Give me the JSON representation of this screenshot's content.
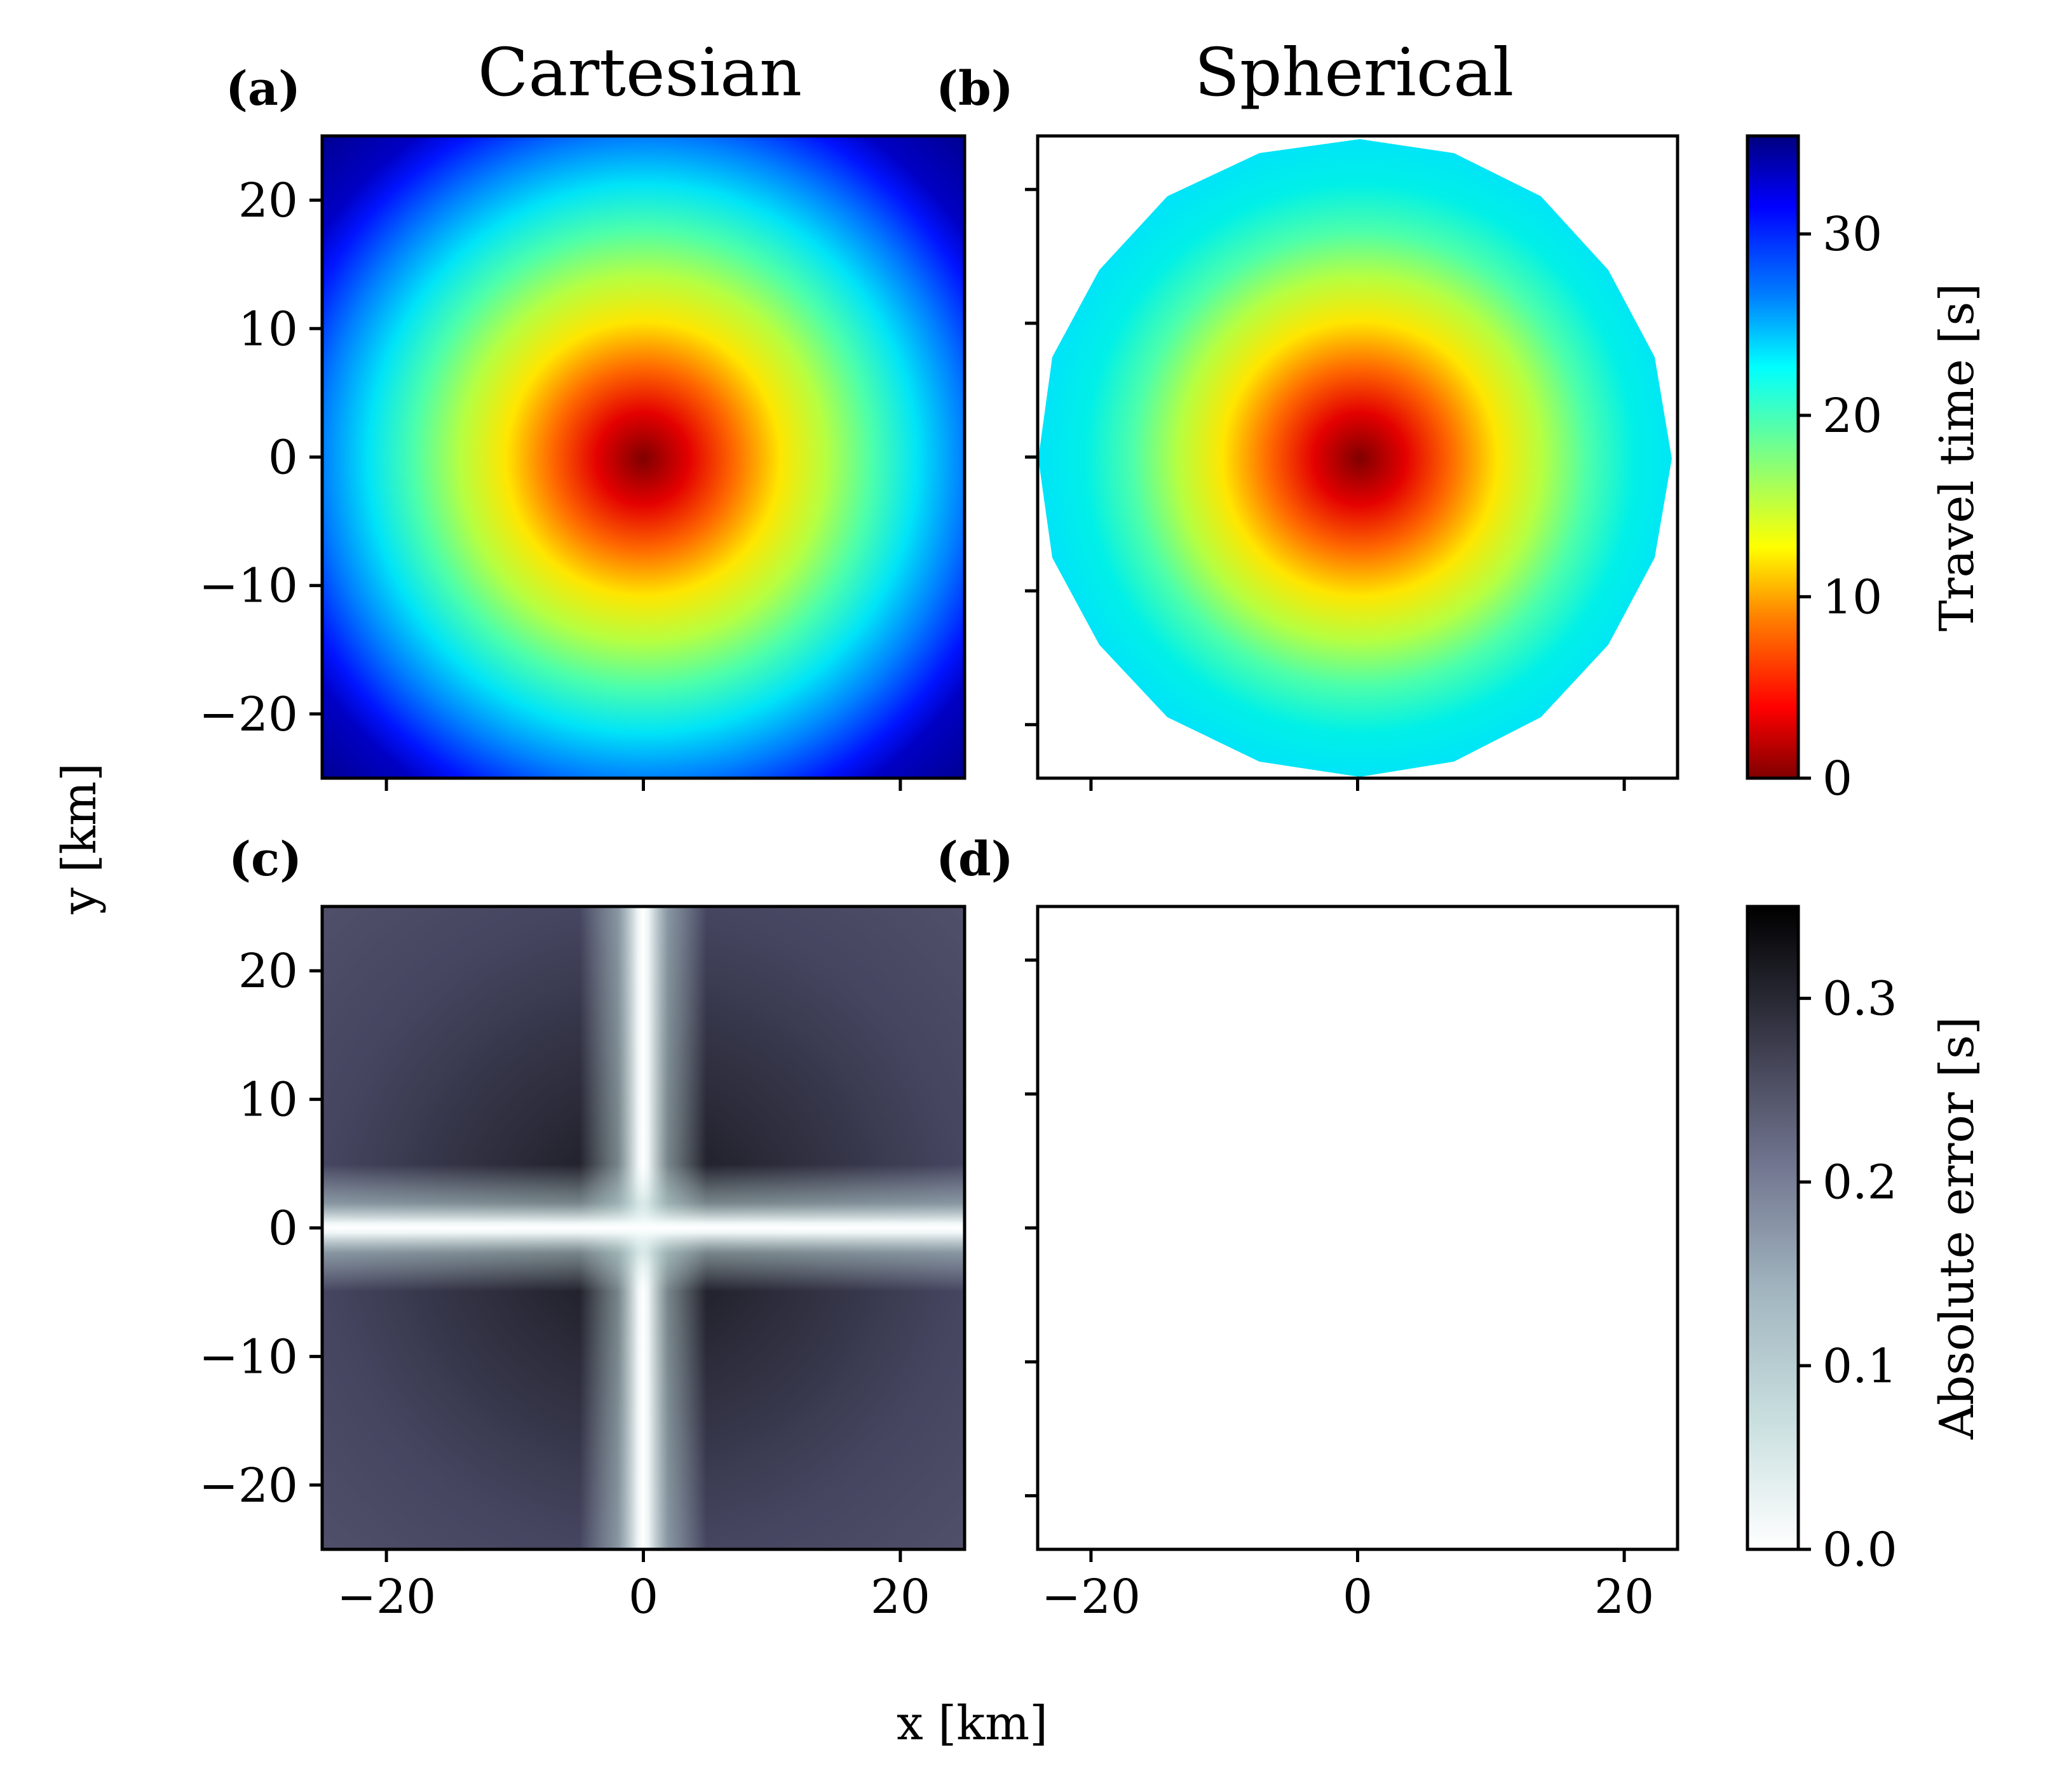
{
  "chart_data": [
    {
      "panel": "a",
      "type": "heatmap",
      "title": "Cartesian",
      "panel_label": "(a)",
      "quantity": "travel time from source at origin (s)",
      "source": [
        0,
        0
      ],
      "x_range": [
        -25,
        25
      ],
      "y_range": [
        -25,
        25
      ],
      "center_value": 0,
      "corner_value": 35.4,
      "edge_midpoint_value": 25,
      "colormap": "jet_r",
      "xticks": [
        "",
        "",
        ""
      ],
      "yticks": [
        "20",
        "10",
        "0",
        "−10",
        "−20"
      ]
    },
    {
      "panel": "b",
      "type": "heatmap",
      "title": "Spherical",
      "panel_label": "(b)",
      "quantity": "travel time from source at origin (s)",
      "domain_shape": "polygon, radius 25 km",
      "x_range": [
        -24,
        24
      ],
      "y_range": [
        -24,
        24
      ],
      "center_value": 0,
      "edge_value": 25,
      "colormap": "jet_r"
    },
    {
      "panel": "c",
      "type": "heatmap",
      "panel_label": "(c)",
      "quantity": "absolute error (s)",
      "x_range": [
        -25,
        25
      ],
      "y_range": [
        -25,
        25
      ],
      "pattern": "zero along x and y axes, maximum along diagonals near origin",
      "max_value": 0.33,
      "colormap": "bone_r",
      "xticks": [
        "−20",
        "0",
        "20"
      ],
      "yticks": [
        "20",
        "10",
        "0",
        "−10",
        "−20"
      ]
    },
    {
      "panel": "d",
      "type": "heatmap",
      "panel_label": "(d)",
      "quantity": "absolute error (s)",
      "x_range": [
        -24,
        24
      ],
      "y_range": [
        -24,
        24
      ],
      "uniform_value": 0,
      "colormap": "bone_r",
      "xticks": [
        "−20",
        "0",
        "20"
      ]
    }
  ],
  "colorbars": [
    {
      "label": "Travel time [s]",
      "range": [
        0,
        35.4
      ],
      "ticks": [
        {
          "value": 0,
          "label": "0"
        },
        {
          "value": 10,
          "label": "10"
        },
        {
          "value": 20,
          "label": "20"
        },
        {
          "value": 30,
          "label": "30"
        }
      ]
    },
    {
      "label": "Absolute error [s]",
      "range": [
        0,
        0.35
      ],
      "ticks": [
        {
          "value": 0,
          "label": "0.0"
        },
        {
          "value": 0.1,
          "label": "0.1"
        },
        {
          "value": 0.2,
          "label": "0.2"
        },
        {
          "value": 0.3,
          "label": "0.3"
        }
      ]
    }
  ],
  "labels": {
    "xlabel": "x [km]",
    "ylabel": "y [km]",
    "title_a": "Cartesian",
    "title_b": "Spherical",
    "letter_a": "(a)",
    "letter_b": "(b)",
    "letter_c": "(c)",
    "letter_d": "(d)"
  }
}
